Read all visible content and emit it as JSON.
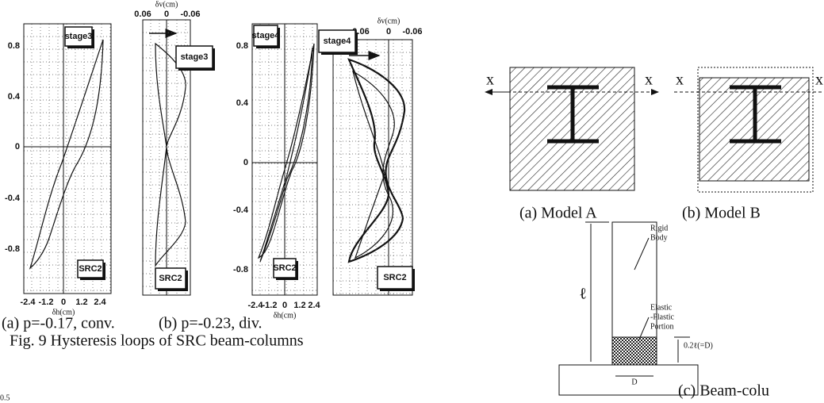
{
  "figure": {
    "panels": [
      {
        "y_ticks": [
          "0.8",
          "0.4",
          "0",
          "-0.4",
          "-0.8"
        ],
        "x_ticks": [
          "-2.4",
          "-1.2",
          "0",
          "1.2",
          "2.4"
        ],
        "x_label": "δh(cm)",
        "labels": [
          "stage3",
          "SRC2"
        ]
      },
      {
        "top_label": "δv(cm)",
        "top_ticks": [
          "0.06",
          "0",
          "-0.06"
        ],
        "labels": [
          "stage3",
          "SRC2"
        ]
      },
      {
        "y_ticks": [
          "0.8",
          "0.4",
          "0",
          "-0.4",
          "-0.8"
        ],
        "x_ticks": [
          "-2.4",
          "-1.2",
          "0",
          "1.2",
          "2.4"
        ],
        "x_label": "δh(cm)",
        "labels": [
          "stage4",
          "SRC2"
        ]
      },
      {
        "top_label": "δv(cm)",
        "top_ticks": [
          "0.06",
          "0",
          "-0.06"
        ],
        "labels": [
          "stage4",
          "SRC2"
        ]
      }
    ],
    "caption_a": "(a) p=-0.17, conv.",
    "caption_b": "(b) p=-0.23, div.",
    "fig_caption": "Fig. 9  Hysteresis loops of SRC beam-columns",
    "bottom_fragment": "0.5"
  },
  "models": {
    "axis_labels": [
      "x",
      "x",
      "x",
      "x"
    ],
    "caption_a": "(a) Model A",
    "caption_b": "(b) Model B",
    "column": {
      "rigid": [
        "Rigid",
        "Body"
      ],
      "elastic": [
        "Elastic",
        "-Plastic",
        "Portion"
      ],
      "length": "ℓ",
      "portion": "0.2ℓ(=D)",
      "width": "D",
      "caption": "(c) Beam-colu"
    }
  }
}
